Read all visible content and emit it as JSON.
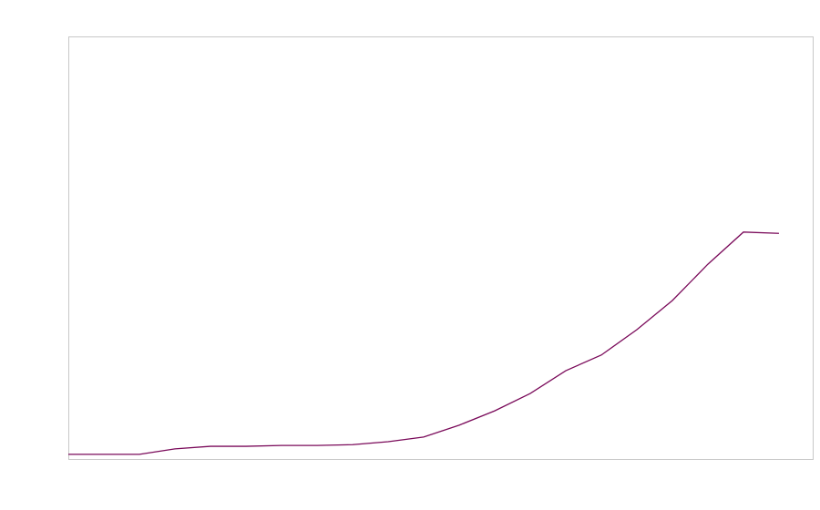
{
  "chart_data": {
    "type": "line",
    "x": [
      0,
      1,
      2,
      3,
      4,
      5,
      6,
      7,
      8,
      9,
      10,
      11,
      12,
      13,
      14,
      15,
      16,
      17,
      18,
      19,
      20
    ],
    "series": [
      {
        "color": "#7a0a5a",
        "values": [
          1.1,
          1.1,
          1.1,
          2.4,
          3.0,
          3.0,
          3.2,
          3.2,
          3.4,
          4.1,
          5.2,
          8.0,
          11.4,
          15.5,
          20.9,
          24.6,
          30.6,
          37.5,
          46.1,
          53.7,
          53.4
        ]
      }
    ],
    "xlim": [
      0,
      20.95
    ],
    "ylim": [
      0,
      100
    ]
  }
}
